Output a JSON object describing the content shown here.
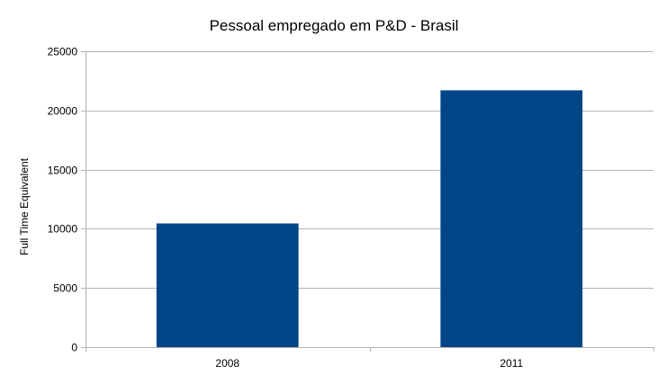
{
  "chart_data": {
    "type": "bar",
    "title": "Pessoal empregado em P&D - Brasil",
    "xlabel": "",
    "ylabel": "Full Time Equivalent",
    "categories": [
      "2008",
      "2011"
    ],
    "values": [
      10450,
      21700
    ],
    "ylim": [
      0,
      25000
    ],
    "yticks": [
      0,
      5000,
      10000,
      15000,
      20000,
      25000
    ],
    "grid": true,
    "legend": "none",
    "bar_color": "#004586",
    "grid_color": "#b3b3b3"
  }
}
